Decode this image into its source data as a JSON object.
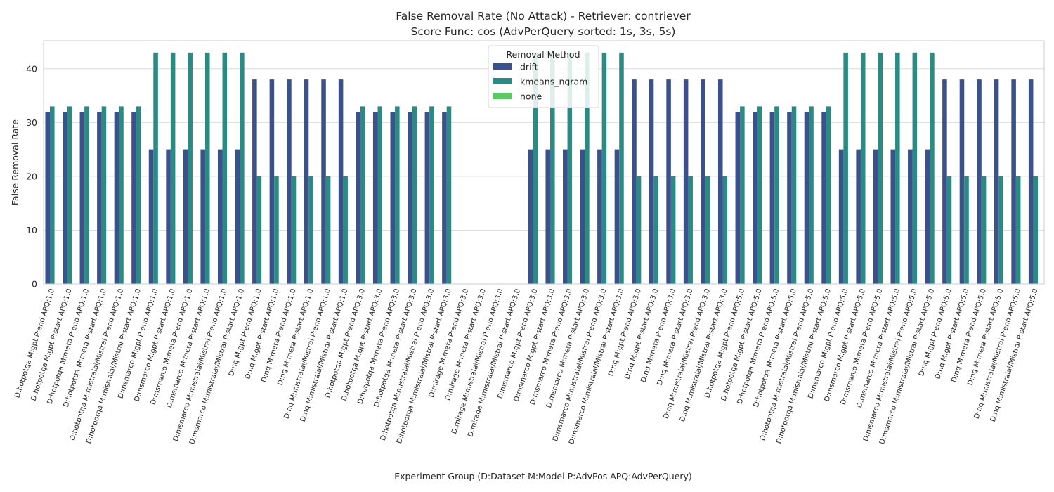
{
  "chart_data": {
    "type": "bar",
    "title": "False Removal Rate (No Attack) - Retriever: contriever",
    "subtitle": "Score Func: cos (AdvPerQuery sorted: 1s, 3s, 5s)",
    "xlabel": "Experiment Group (D:Dataset M:Model P:AdvPos APQ:AdvPerQuery)",
    "ylabel": "False Removal Rate",
    "ylim": [
      0,
      45.2
    ],
    "yticks": [
      0,
      10,
      20,
      30,
      40
    ],
    "grid": true,
    "legend": {
      "title": "Removal Method",
      "placement": "top-center"
    },
    "categories": [
      "D:hotpotqa M:gpt P:end APQ:1.0",
      "D:hotpotqa M:gpt P:start APQ:1.0",
      "D:hotpotqa M:meta P:end APQ:1.0",
      "D:hotpotqa M:meta P:start APQ:1.0",
      "D:hotpotqa M:mistralai/Mistral P:end APQ:1.0",
      "D:hotpotqa M:mistralai/Mistral P:start APQ:1.0",
      "D:msmarco M:gpt P:end APQ:1.0",
      "D:msmarco M:gpt P:start APQ:1.0",
      "D:msmarco M:meta P:end APQ:1.0",
      "D:msmarco M:meta P:start APQ:1.0",
      "D:msmarco M:mistralai/Mistral P:end APQ:1.0",
      "D:msmarco M:mistralai/Mistral P:start APQ:1.0",
      "D:nq M:gpt P:end APQ:1.0",
      "D:nq M:gpt P:start APQ:1.0",
      "D:nq M:meta P:end APQ:1.0",
      "D:nq M:meta P:start APQ:1.0",
      "D:nq M:mistralai/Mistral P:end APQ:1.0",
      "D:nq M:mistralai/Mistral P:start APQ:1.0",
      "D:hotpotqa M:gpt P:end APQ:3.0",
      "D:hotpotqa M:gpt P:start APQ:3.0",
      "D:hotpotqa M:meta P:end APQ:3.0",
      "D:hotpotqa M:meta P:start APQ:3.0",
      "D:hotpotqa M:mistralai/Mistral P:end APQ:3.0",
      "D:hotpotqa M:mistralai/Mistral P:start APQ:3.0",
      "D:mirage M:meta P:end APQ:3.0",
      "D:mirage M:meta P:start APQ:3.0",
      "D:mirage M:mistralai/Mistral P:end APQ:3.0",
      "D:mirage M:mistralai/Mistral P:start APQ:3.0",
      "D:msmarco M:gpt P:end APQ:3.0",
      "D:msmarco M:gpt P:start APQ:3.0",
      "D:msmarco M:meta P:end APQ:3.0",
      "D:msmarco M:meta P:start APQ:3.0",
      "D:msmarco M:mistralai/Mistral P:end APQ:3.0",
      "D:msmarco M:mistralai/Mistral P:start APQ:3.0",
      "D:nq M:gpt P:end APQ:3.0",
      "D:nq M:gpt P:start APQ:3.0",
      "D:nq M:meta P:end APQ:3.0",
      "D:nq M:meta P:start APQ:3.0",
      "D:nq M:mistralai/Mistral P:end APQ:3.0",
      "D:nq M:mistralai/Mistral P:start APQ:3.0",
      "D:hotpotqa M:gpt P:end APQ:5.0",
      "D:hotpotqa M:gpt P:start APQ:5.0",
      "D:hotpotqa M:meta P:end APQ:5.0",
      "D:hotpotqa M:meta P:start APQ:5.0",
      "D:hotpotqa M:mistralai/Mistral P:end APQ:5.0",
      "D:hotpotqa M:mistralai/Mistral P:start APQ:5.0",
      "D:msmarco M:gpt P:end APQ:5.0",
      "D:msmarco M:gpt P:start APQ:5.0",
      "D:msmarco M:meta P:end APQ:5.0",
      "D:msmarco M:meta P:start APQ:5.0",
      "D:msmarco M:mistralai/Mistral P:end APQ:5.0",
      "D:msmarco M:mistralai/Mistral P:start APQ:5.0",
      "D:nq M:gpt P:end APQ:5.0",
      "D:nq M:gpt P:start APQ:5.0",
      "D:nq M:meta P:end APQ:5.0",
      "D:nq M:meta P:start APQ:5.0",
      "D:nq M:mistralai/Mistral P:end APQ:5.0",
      "D:nq M:mistralai/Mistral P:start APQ:5.0"
    ],
    "series": [
      {
        "name": "drift",
        "color": "#3b518b",
        "values": [
          32,
          32,
          32,
          32,
          32,
          32,
          25,
          25,
          25,
          25,
          25,
          25,
          38,
          38,
          38,
          38,
          38,
          38,
          32,
          32,
          32,
          32,
          32,
          32,
          0,
          0,
          0,
          0,
          25,
          25,
          25,
          25,
          25,
          25,
          38,
          38,
          38,
          38,
          38,
          38,
          32,
          32,
          32,
          32,
          32,
          32,
          25,
          25,
          25,
          25,
          25,
          25,
          38,
          38,
          38,
          38,
          38,
          38
        ]
      },
      {
        "name": "kmeans_ngram",
        "color": "#2c8a84",
        "values": [
          33,
          33,
          33,
          33,
          33,
          33,
          43,
          43,
          43,
          43,
          43,
          43,
          20,
          20,
          20,
          20,
          20,
          20,
          33,
          33,
          33,
          33,
          33,
          33,
          0,
          0,
          0,
          0,
          43,
          43,
          43,
          43,
          43,
          43,
          20,
          20,
          20,
          20,
          20,
          20,
          33,
          33,
          33,
          33,
          33,
          33,
          43,
          43,
          43,
          43,
          43,
          43,
          20,
          20,
          20,
          20,
          20,
          20
        ]
      },
      {
        "name": "none",
        "color": "#5cc863",
        "values": [
          0,
          0,
          0,
          0,
          0,
          0,
          0,
          0,
          0,
          0,
          0,
          0,
          0,
          0,
          0,
          0,
          0,
          0,
          0,
          0,
          0,
          0,
          0,
          0,
          0,
          0,
          0,
          0,
          0,
          0,
          0,
          0,
          0,
          0,
          0,
          0,
          0,
          0,
          0,
          0,
          0,
          0,
          0,
          0,
          0,
          0,
          0,
          0,
          0,
          0,
          0,
          0,
          0,
          0,
          0,
          0,
          0,
          0
        ]
      }
    ]
  }
}
